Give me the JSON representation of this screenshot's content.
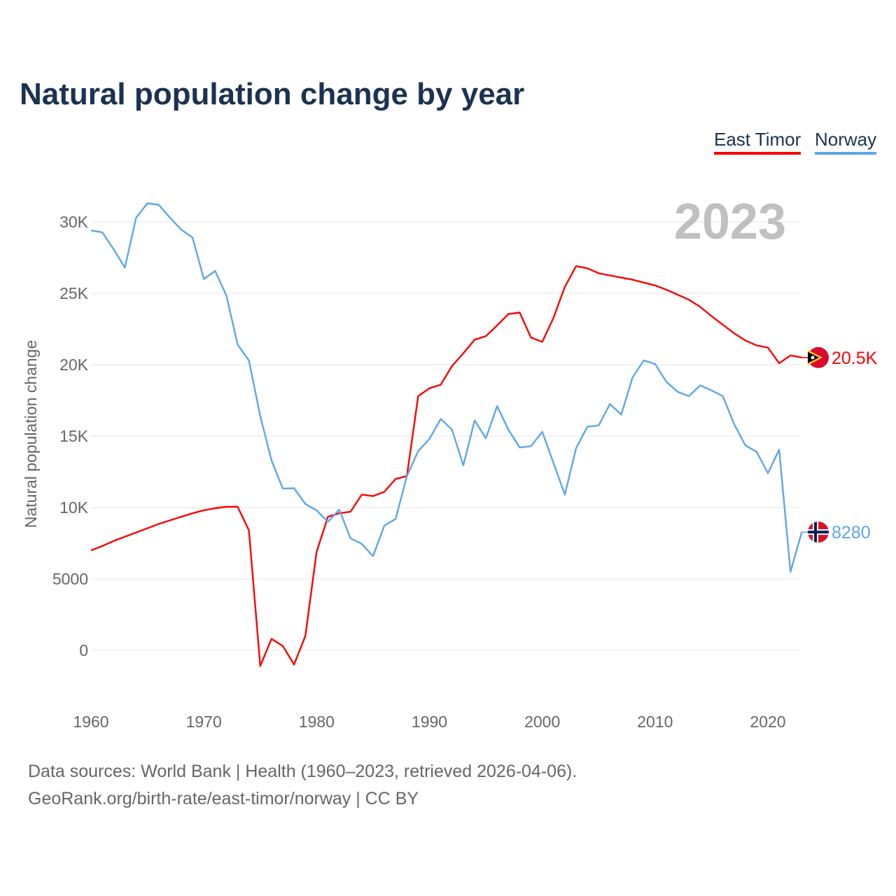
{
  "chart_data": {
    "type": "line",
    "title": "Natural population change by year",
    "xlabel": "",
    "ylabel": "Natural population change",
    "xlim": [
      1960,
      2023
    ],
    "ylim": [
      -2500,
      31500
    ],
    "grid": true,
    "legend_position": "top-right",
    "year_label": "2023",
    "x_ticks": [
      1960,
      1970,
      1980,
      1990,
      2000,
      2010,
      2020
    ],
    "y_ticks": [
      {
        "v": 0,
        "label": "0"
      },
      {
        "v": 5000,
        "label": "5000"
      },
      {
        "v": 10000,
        "label": "10K"
      },
      {
        "v": 15000,
        "label": "15K"
      },
      {
        "v": 20000,
        "label": "20K"
      },
      {
        "v": 25000,
        "label": "25K"
      },
      {
        "v": 30000,
        "label": "30K"
      }
    ],
    "x": [
      1960,
      1961,
      1962,
      1963,
      1964,
      1965,
      1966,
      1967,
      1968,
      1969,
      1970,
      1971,
      1972,
      1973,
      1974,
      1975,
      1976,
      1977,
      1978,
      1979,
      1980,
      1981,
      1982,
      1983,
      1984,
      1985,
      1986,
      1987,
      1988,
      1989,
      1990,
      1991,
      1992,
      1993,
      1994,
      1995,
      1996,
      1997,
      1998,
      1999,
      2000,
      2001,
      2002,
      2003,
      2004,
      2005,
      2006,
      2007,
      2008,
      2009,
      2010,
      2011,
      2012,
      2013,
      2014,
      2015,
      2016,
      2017,
      2018,
      2019,
      2020,
      2021,
      2022,
      2023
    ],
    "series": [
      {
        "name": "East Timor",
        "color": "#ff0000",
        "end_label": "20.5K",
        "flag": "east-timor-flag",
        "values": [
          7000,
          7300,
          7650,
          7950,
          8250,
          8550,
          8850,
          9100,
          9350,
          9600,
          9800,
          9950,
          10050,
          10050,
          8400,
          -1100,
          800,
          300,
          -1000,
          1000,
          6900,
          9350,
          9600,
          9700,
          10900,
          10800,
          11100,
          12000,
          12200,
          17800,
          18350,
          18600,
          19900,
          20800,
          21750,
          22000,
          22750,
          23550,
          23650,
          21900,
          21600,
          23300,
          25450,
          26900,
          26750,
          26400,
          26250,
          26100,
          25950,
          25750,
          25550,
          25250,
          24900,
          24550,
          24050,
          23400,
          22800,
          22200,
          21700,
          21350,
          21200,
          20100,
          20650,
          20500
        ]
      },
      {
        "name": "Norway",
        "color": "#5ea6e8",
        "end_label": "8280",
        "flag": "norway-flag",
        "values": [
          29400,
          29270,
          28100,
          26800,
          30300,
          31300,
          31200,
          30300,
          29460,
          28900,
          26000,
          26570,
          24850,
          21400,
          20300,
          16400,
          13300,
          11330,
          11350,
          10250,
          9800,
          9000,
          9850,
          7850,
          7450,
          6600,
          8730,
          9200,
          12200,
          13950,
          14800,
          16200,
          15450,
          12950,
          16100,
          14850,
          17100,
          15450,
          14200,
          14300,
          15300,
          13100,
          10900,
          14150,
          15650,
          15750,
          17250,
          16500,
          19100,
          20300,
          20050,
          18800,
          18100,
          17800,
          18550,
          18200,
          17800,
          15850,
          14350,
          13900,
          12400,
          14050,
          5500,
          8280
        ]
      }
    ]
  },
  "footer": {
    "line1": "Data sources: World Bank | Health (1960–2023, retrieved 2026-04-06).",
    "line2": "GeoRank.org/birth-rate/east-timor/norway | CC BY"
  }
}
